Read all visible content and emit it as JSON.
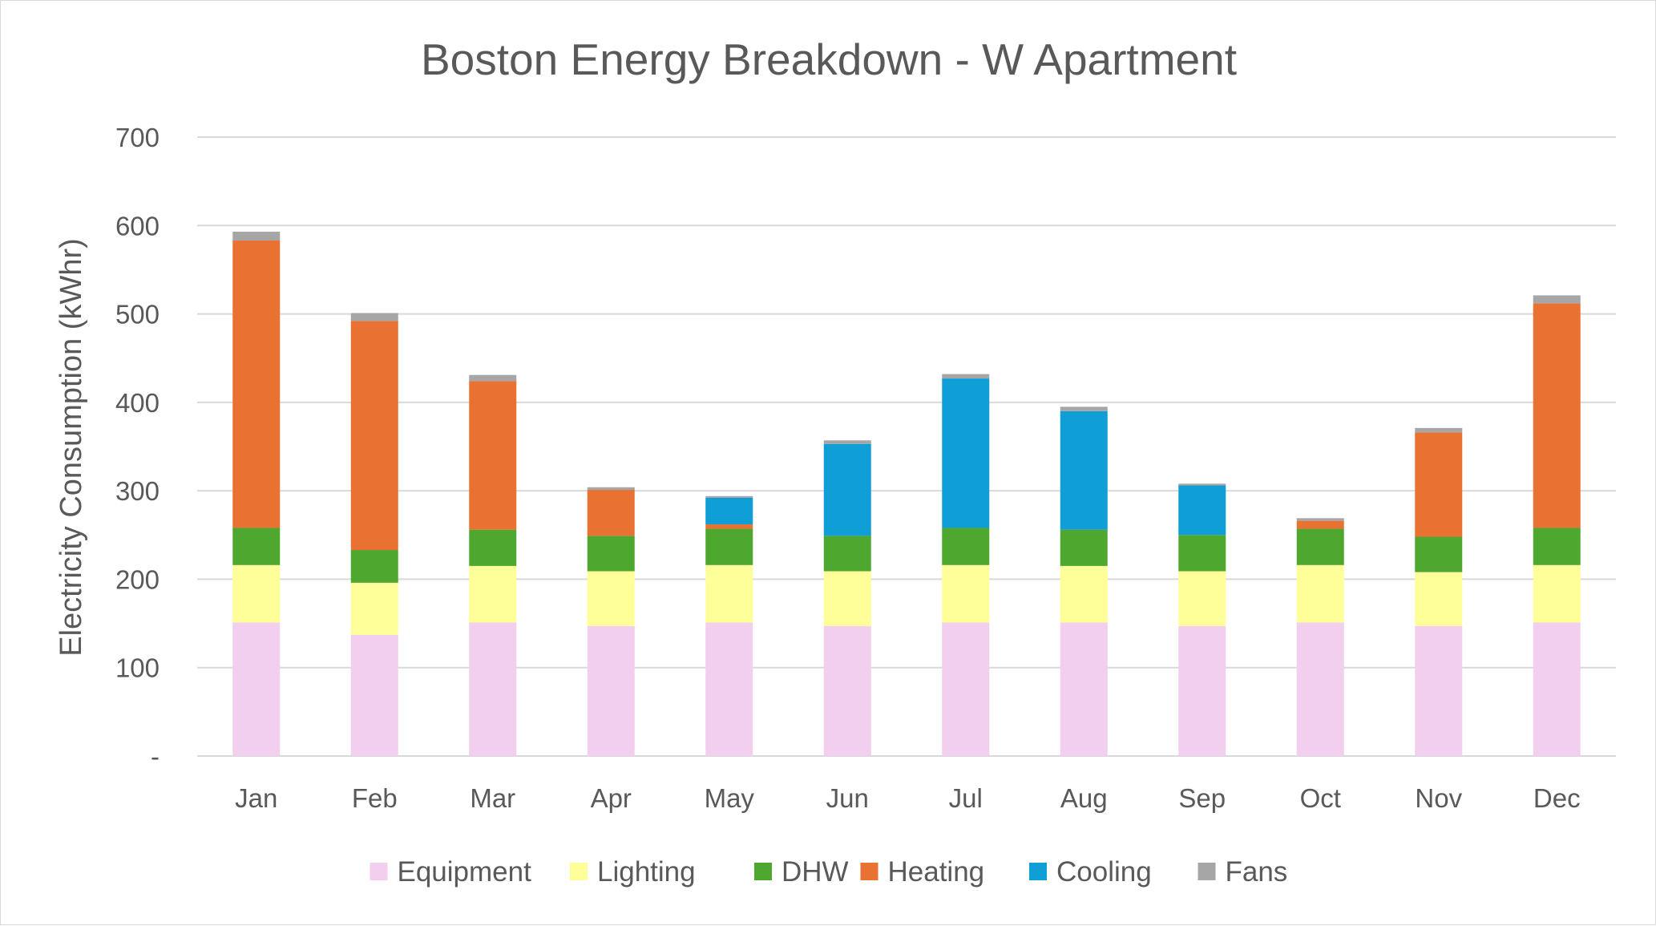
{
  "chart_data": {
    "type": "bar",
    "stacked": true,
    "title": "Boston Energy Breakdown - W Apartment",
    "xlabel": "",
    "ylabel": "Electricity Consumption (kWhr)",
    "ylim": [
      0,
      700
    ],
    "yticks": [
      {
        "value": 0,
        "label": "-"
      },
      {
        "value": 100,
        "label": "100"
      },
      {
        "value": 200,
        "label": "200"
      },
      {
        "value": 300,
        "label": "300"
      },
      {
        "value": 400,
        "label": "400"
      },
      {
        "value": 500,
        "label": "500"
      },
      {
        "value": 600,
        "label": "600"
      },
      {
        "value": 700,
        "label": "700"
      }
    ],
    "grid": true,
    "legend_position": "bottom",
    "categories": [
      "Jan",
      "Feb",
      "Mar",
      "Apr",
      "May",
      "Jun",
      "Jul",
      "Aug",
      "Sep",
      "Oct",
      "Nov",
      "Dec"
    ],
    "series": [
      {
        "name": "Equipment",
        "color": "#f2cfee",
        "values": [
          151,
          137,
          151,
          147,
          151,
          147,
          151,
          151,
          147,
          151,
          147,
          151
        ]
      },
      {
        "name": "Lighting",
        "color": "#ffff99",
        "values": [
          65,
          59,
          64,
          62,
          65,
          62,
          65,
          64,
          62,
          65,
          61,
          65
        ]
      },
      {
        "name": "DHW",
        "color": "#4ea72e",
        "values": [
          42,
          37,
          41,
          40,
          41,
          40,
          42,
          41,
          41,
          41,
          40,
          42
        ]
      },
      {
        "name": "Heating",
        "color": "#e97132",
        "values": [
          325,
          259,
          168,
          52,
          5,
          0,
          0,
          0,
          0,
          9,
          118,
          254
        ]
      },
      {
        "name": "Cooling",
        "color": "#0f9ed5",
        "values": [
          0,
          0,
          0,
          0,
          30,
          104,
          169,
          134,
          56,
          0,
          0,
          0
        ]
      },
      {
        "name": "Fans",
        "color": "#a6a6a6",
        "values": [
          10,
          9,
          7,
          3,
          2,
          4,
          5,
          5,
          2,
          3,
          5,
          9
        ]
      }
    ]
  }
}
